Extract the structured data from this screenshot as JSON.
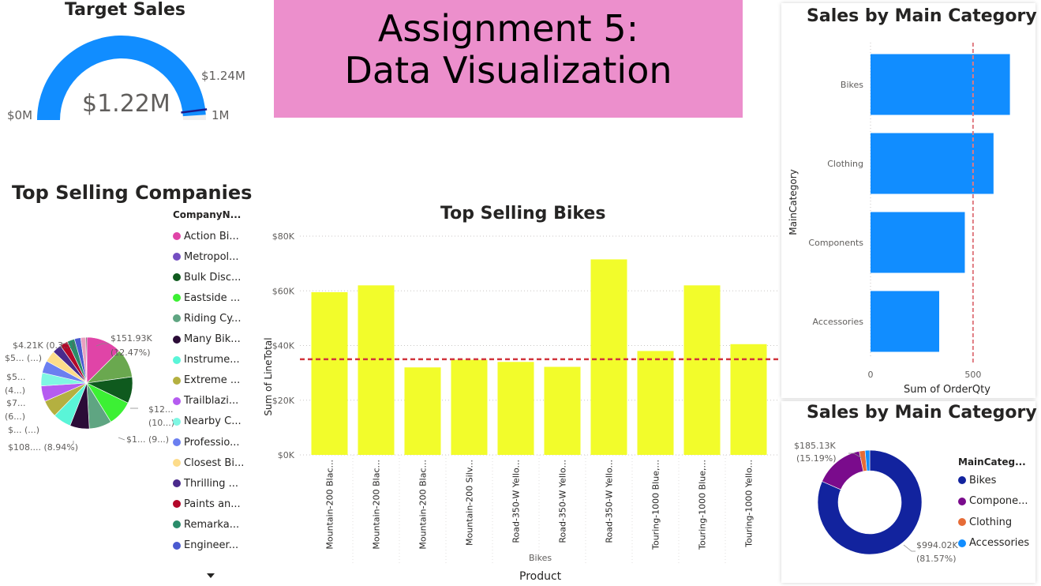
{
  "banner": {
    "line1": "Assignment 5:",
    "line2": "Data Visualization",
    "bg": "#ec8fcc"
  },
  "gauge": {
    "title": "Target Sales",
    "value_label": "$1.22M",
    "min_label": "$0M",
    "max_label": "1M",
    "target_label": "$1.24M",
    "value_fraction": 0.98,
    "target_fraction": 0.96,
    "fill_color": "#118dff",
    "track_color": "#f0efef",
    "target_color": "#1a1a8a"
  },
  "companies": {
    "title": "Top Selling Companies",
    "legend_header": "CompanyN...",
    "legend": [
      {
        "label": "Action Bi...",
        "color": "#e044a7"
      },
      {
        "label": "Metropol...",
        "color": "#744ec2"
      },
      {
        "label": "Bulk Disc...",
        "color": "#0f5a1e"
      },
      {
        "label": "Eastside ...",
        "color": "#3cf034"
      },
      {
        "label": "Riding Cy...",
        "color": "#5fa582"
      },
      {
        "label": "Many Bik...",
        "color": "#2b0c37"
      },
      {
        "label": "Instrume...",
        "color": "#5af5d8"
      },
      {
        "label": "Extreme ...",
        "color": "#b4b040"
      },
      {
        "label": "Trailblazi...",
        "color": "#b55cf0"
      },
      {
        "label": "Nearby C...",
        "color": "#7ff7e3"
      },
      {
        "label": "Professio...",
        "color": "#6b7ff0"
      },
      {
        "label": "Closest Bi...",
        "color": "#fddc8a"
      },
      {
        "label": "Thrilling ...",
        "color": "#4a2a8c"
      },
      {
        "label": "Paints an...",
        "color": "#b3082a"
      },
      {
        "label": "Remarka...",
        "color": "#2a8c6a"
      },
      {
        "label": "Engineer...",
        "color": "#4a5ad0"
      }
    ],
    "slice_colors": [
      "#e044a7",
      "#6aa84f",
      "#0f5a1e",
      "#3cf034",
      "#5fa582",
      "#2b0c37",
      "#5af5d8",
      "#b4b040",
      "#b55cf0",
      "#7ff7e3",
      "#6b7ff0",
      "#fddc8a",
      "#4a2a8c",
      "#b3082a",
      "#2a8c6a",
      "#4a5ad0",
      "#e8a0c0",
      "#404040"
    ],
    "data_labels": {
      "top_value": "$151.93K",
      "top_pct": "(12.47%)",
      "r1a": "$12...",
      "r1b": "(10...)",
      "r2": "$1... (9...)",
      "b1": "$108.... (8.94%)",
      "l1": "$... (...)",
      "l2a": "$7...",
      "l2b": "(6...)",
      "l3a": "$5...",
      "l3b": "(4...)",
      "l4": "$5... (...)",
      "l5": "$4.21K (0.3...)"
    }
  },
  "bikes_chart": {
    "title": "Top Selling Bikes",
    "xlabel": "Product",
    "ylabel": "Sum of LineTotal",
    "subgroup": "Bikes",
    "bar_color": "#f2fc2b",
    "avg_line_color": "#d1343c"
  },
  "category_bar": {
    "title": "Sales by Main Category",
    "xlabel": "Sum of OrderQty",
    "ylabel": "MainCategory",
    "bar_color": "#118dff",
    "ref_line_color": "#e07a80"
  },
  "category_donut": {
    "title": "Sales by Main Category",
    "legend_header": "MainCateg...",
    "legend": [
      {
        "label": "Bikes",
        "color": "#12239e"
      },
      {
        "label": "Compone...",
        "color": "#7a0b8c"
      },
      {
        "label": "Clothing",
        "color": "#e66c37"
      },
      {
        "label": "Accessories",
        "color": "#118dff"
      }
    ],
    "labels": {
      "top_value": "$185.13K",
      "top_pct": "(15.19%)",
      "bottom_value": "$994.02K",
      "bottom_pct": "(81.57%)"
    }
  },
  "chart_data": [
    {
      "type": "bar",
      "title": "Top Selling Bikes",
      "xlabel": "Product",
      "ylabel": "Sum of LineTotal",
      "categories": [
        "Mountain-200 Blac...",
        "Mountain-200 Blac...",
        "Mountain-200 Blac...",
        "Mountain-200 Silv...",
        "Road-350-W Yello...",
        "Road-350-W Yello...",
        "Road-350-W Yello...",
        "Touring-1000 Blue,...",
        "Touring-1000 Blue,...",
        "Touring-1000 Yello..."
      ],
      "values": [
        59500,
        62000,
        32000,
        34800,
        34000,
        32200,
        71500,
        38000,
        62000,
        40500
      ],
      "average_line": 35000,
      "ylim": [
        0,
        80000
      ],
      "yticks": [
        "$0K",
        "$20K",
        "$40K",
        "$60K",
        "$80K"
      ],
      "ytick_values": [
        0,
        20000,
        40000,
        60000,
        80000
      ],
      "grid": true
    },
    {
      "type": "bar",
      "orientation": "horizontal",
      "title": "Sales by Main Category",
      "xlabel": "Sum of OrderQty",
      "ylabel": "MainCategory",
      "categories": [
        "Bikes",
        "Clothing",
        "Components",
        "Accessories"
      ],
      "values": [
        680,
        600,
        460,
        335
      ],
      "reference_line": 500,
      "xlim": [
        0,
        720
      ],
      "xticks": [
        "0",
        "500"
      ],
      "xtick_values": [
        0,
        500
      ]
    },
    {
      "type": "pie",
      "variant": "donut",
      "title": "Sales by Main Category",
      "categories": [
        "Bikes",
        "Components",
        "Clothing",
        "Accessories"
      ],
      "values": [
        994.02,
        185.13,
        22,
        17.5
      ],
      "percent": [
        81.57,
        15.19,
        1.8,
        1.44
      ]
    },
    {
      "type": "pie",
      "title": "Top Selling Companies",
      "values": [
        12.47,
        10.2,
        9.3,
        8.94,
        7.9,
        6.8,
        6.4,
        6.0,
        5.5,
        4.6,
        4.3,
        4.0,
        3.2,
        2.8,
        2.6,
        2.2,
        1.8,
        0.35
      ]
    }
  ]
}
